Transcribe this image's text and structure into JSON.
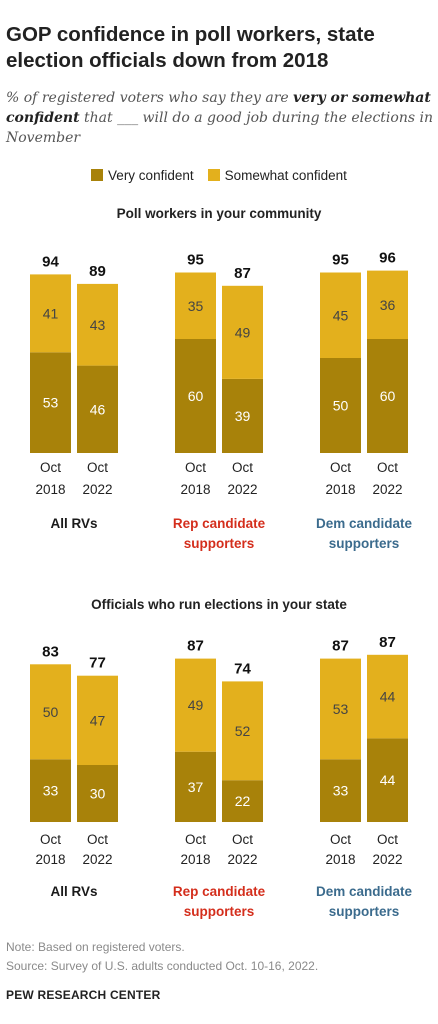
{
  "title": "GOP confidence in poll workers, state election officials down from 2018",
  "subtitle": {
    "part1": "% of registered voters who say they are ",
    "emphasis": "very or somewhat confident",
    "part2": " that ___ will do a good job during the elections in November"
  },
  "legend": {
    "very": "Very confident",
    "somewhat": "Somewhat confident"
  },
  "colors": {
    "very": "#a8820a",
    "somewhat": "#e3b01d",
    "rep": "#d42e1c",
    "dem": "#3b6b8d",
    "text": "#1a1a1a"
  },
  "chart_data": [
    {
      "type": "bar",
      "stacked": true,
      "title": "Poll workers in your community",
      "groups": [
        {
          "label": "All RVs",
          "color_key": "text",
          "bars": [
            {
              "x_label": [
                "Oct",
                "2018"
              ],
              "very": 53,
              "somewhat": 41,
              "total": 94
            },
            {
              "x_label": [
                "Oct",
                "2022"
              ],
              "very": 46,
              "somewhat": 43,
              "total": 89
            }
          ]
        },
        {
          "label": "Rep candidate supporters",
          "color_key": "rep",
          "bars": [
            {
              "x_label": [
                "Oct",
                "2018"
              ],
              "very": 60,
              "somewhat": 35,
              "total": 95
            },
            {
              "x_label": [
                "Oct",
                "2022"
              ],
              "very": 39,
              "somewhat": 49,
              "total": 87
            }
          ]
        },
        {
          "label": "Dem candidate supporters",
          "color_key": "dem",
          "bars": [
            {
              "x_label": [
                "Oct",
                "2018"
              ],
              "very": 50,
              "somewhat": 45,
              "total": 95
            },
            {
              "x_label": [
                "Oct",
                "2022"
              ],
              "very": 60,
              "somewhat": 36,
              "total": 96
            }
          ]
        }
      ]
    },
    {
      "type": "bar",
      "stacked": true,
      "title": "Officials who run elections in your state",
      "groups": [
        {
          "label": "All RVs",
          "color_key": "text",
          "bars": [
            {
              "x_label": [
                "Oct",
                "2018"
              ],
              "very": 33,
              "somewhat": 50,
              "total": 83
            },
            {
              "x_label": [
                "Oct",
                "2022"
              ],
              "very": 30,
              "somewhat": 47,
              "total": 77
            }
          ]
        },
        {
          "label": "Rep candidate supporters",
          "color_key": "rep",
          "bars": [
            {
              "x_label": [
                "Oct",
                "2018"
              ],
              "very": 37,
              "somewhat": 49,
              "total": 87
            },
            {
              "x_label": [
                "Oct",
                "2022"
              ],
              "very": 22,
              "somewhat": 52,
              "total": 74
            }
          ]
        },
        {
          "label": "Dem candidate supporters",
          "color_key": "dem",
          "bars": [
            {
              "x_label": [
                "Oct",
                "2018"
              ],
              "very": 33,
              "somewhat": 53,
              "total": 87
            },
            {
              "x_label": [
                "Oct",
                "2022"
              ],
              "very": 44,
              "somewhat": 44,
              "total": 87
            }
          ]
        }
      ]
    }
  ],
  "footer": {
    "note": "Note: Based on registered voters.",
    "source": "Source: Survey of U.S. adults conducted Oct. 10-16, 2022.",
    "credit": "PEW RESEARCH CENTER"
  }
}
